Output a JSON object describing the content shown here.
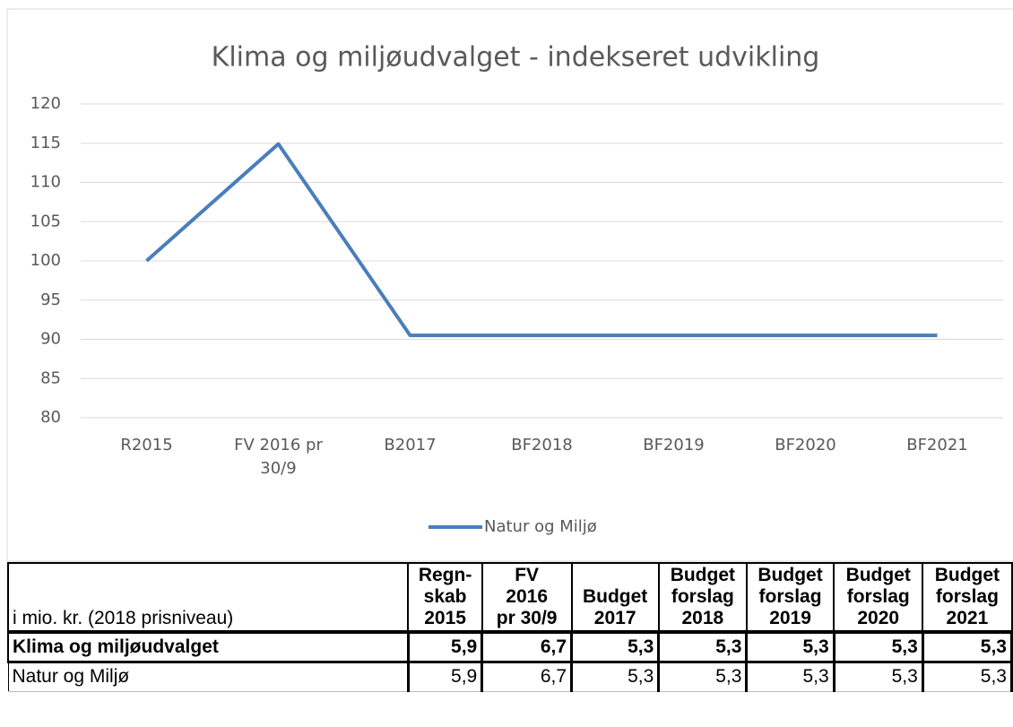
{
  "chart_data": {
    "type": "line",
    "title": "Klima og miljøudvalget - indekseret udvikling",
    "categories": [
      "R2015",
      "FV 2016 pr 30/9",
      "B2017",
      "BF2018",
      "BF2019",
      "BF2020",
      "BF2021"
    ],
    "series": [
      {
        "name": "Natur og Miljø",
        "color": "#4a7ebb",
        "values": [
          100,
          114.9,
          90.5,
          90.5,
          90.5,
          90.5,
          90.5
        ]
      }
    ],
    "ylim": [
      80,
      120
    ],
    "yticks": [
      80,
      85,
      90,
      95,
      100,
      105,
      110,
      115,
      120
    ],
    "grid": true,
    "legend": "bottom"
  },
  "table": {
    "header": [
      "i mio. kr. (2018 prisniveau)",
      "Regn-\nskab\n2015",
      "FV\n2016\npr 30/9",
      "Budget\n2017",
      "Budget\nforslag\n2018",
      "Budget\nforslag\n2019",
      "Budget\nforslag\n2020",
      "Budget\nforslag\n2021"
    ],
    "rows": [
      [
        "Klima og miljøudvalget",
        "5,9",
        "6,7",
        "5,3",
        "5,3",
        "5,3",
        "5,3",
        "5,3"
      ],
      [
        "Natur og Miljø",
        "5,9",
        "6,7",
        "5,3",
        "5,3",
        "5,3",
        "5,3",
        "5,3"
      ]
    ]
  }
}
